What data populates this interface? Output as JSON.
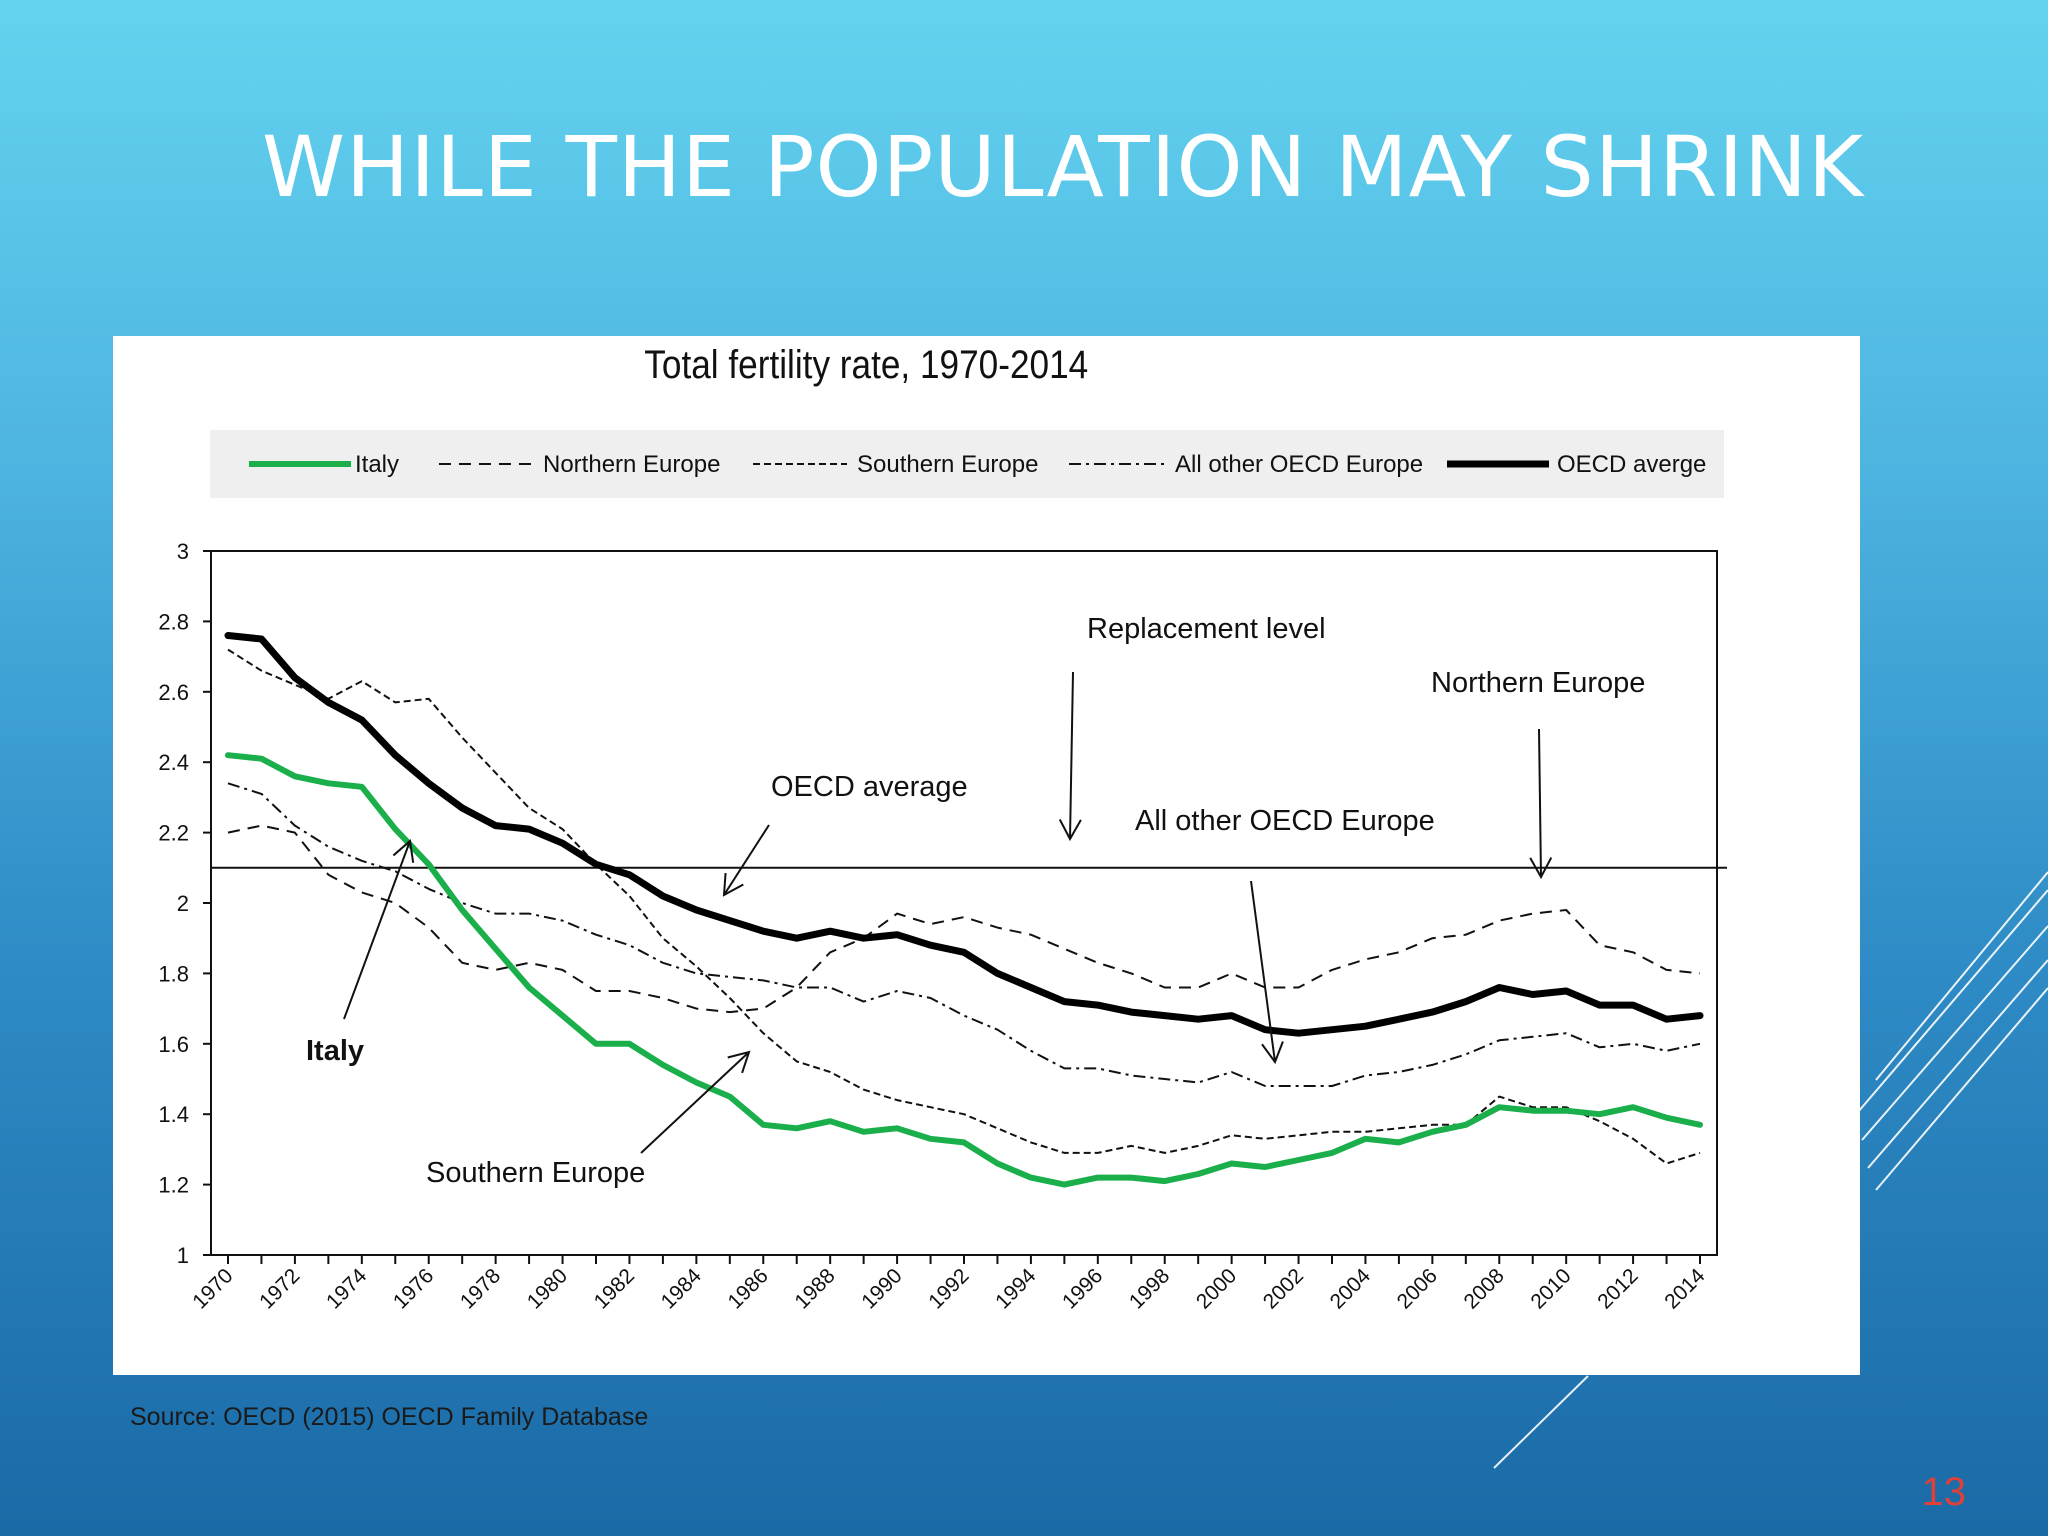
{
  "slide": {
    "title": "WHILE THE POPULATION MAY SHRINK",
    "source": "Source: OECD (2015) OECD Family Database",
    "page_number": "13",
    "colors": {
      "background_top": "#63d3ef",
      "background_bottom": "#1a6aa6",
      "title": "#ffffff",
      "page_number": "#e0403a",
      "decoration": "#ffffff"
    }
  },
  "chart_data": {
    "type": "line",
    "title": "Total fertility rate, 1970-2014",
    "xlabel": "",
    "ylabel": "",
    "ylim": [
      1,
      3
    ],
    "yticks": [
      "1",
      "1.2",
      "1.4",
      "1.6",
      "1.8",
      "2",
      "2.2",
      "2.4",
      "2.6",
      "2.8",
      "3"
    ],
    "xticks_labeled": [
      "1970",
      "1972",
      "1974",
      "1976",
      "1978",
      "1980",
      "1982",
      "1984",
      "1986",
      "1988",
      "1990",
      "1992",
      "1994",
      "1996",
      "1998",
      "2000",
      "2002",
      "2004",
      "2006",
      "2008",
      "2010",
      "2012",
      "2014"
    ],
    "legend_position": "top",
    "grid": false,
    "x": [
      1970,
      1971,
      1972,
      1973,
      1974,
      1975,
      1976,
      1977,
      1978,
      1979,
      1980,
      1981,
      1982,
      1983,
      1984,
      1985,
      1986,
      1987,
      1988,
      1989,
      1990,
      1991,
      1992,
      1993,
      1994,
      1995,
      1996,
      1997,
      1998,
      1999,
      2000,
      2001,
      2002,
      2003,
      2004,
      2005,
      2006,
      2007,
      2008,
      2009,
      2010,
      2011,
      2012,
      2013,
      2014
    ],
    "series": [
      {
        "name": "Italy",
        "color": "#1aaf4b",
        "style": "solid-thick",
        "values": [
          2.42,
          2.41,
          2.36,
          2.34,
          2.33,
          2.21,
          2.11,
          1.98,
          1.87,
          1.76,
          1.68,
          1.6,
          1.6,
          1.54,
          1.49,
          1.45,
          1.37,
          1.36,
          1.38,
          1.35,
          1.36,
          1.33,
          1.32,
          1.26,
          1.22,
          1.2,
          1.22,
          1.22,
          1.21,
          1.23,
          1.26,
          1.25,
          1.27,
          1.29,
          1.33,
          1.32,
          1.35,
          1.37,
          1.42,
          1.41,
          1.41,
          1.4,
          1.42,
          1.39,
          1.37
        ]
      },
      {
        "name": "Northern Europe",
        "color": "#111111",
        "style": "dashed",
        "values": [
          2.2,
          2.22,
          2.2,
          2.08,
          2.03,
          2.0,
          1.93,
          1.83,
          1.81,
          1.83,
          1.81,
          1.75,
          1.75,
          1.73,
          1.7,
          1.69,
          1.7,
          1.76,
          1.86,
          1.9,
          1.97,
          1.94,
          1.96,
          1.93,
          1.91,
          1.87,
          1.83,
          1.8,
          1.76,
          1.76,
          1.8,
          1.76,
          1.76,
          1.81,
          1.84,
          1.86,
          1.9,
          1.91,
          1.95,
          1.97,
          1.98,
          1.88,
          1.86,
          1.81,
          1.8
        ]
      },
      {
        "name": "Southern Europe",
        "color": "#111111",
        "style": "fine-dashed",
        "values": [
          2.72,
          2.66,
          2.62,
          2.58,
          2.63,
          2.57,
          2.58,
          2.47,
          2.37,
          2.27,
          2.21,
          2.11,
          2.02,
          1.9,
          1.82,
          1.73,
          1.63,
          1.55,
          1.52,
          1.47,
          1.44,
          1.42,
          1.4,
          1.36,
          1.32,
          1.29,
          1.29,
          1.31,
          1.29,
          1.31,
          1.34,
          1.33,
          1.34,
          1.35,
          1.35,
          1.36,
          1.37,
          1.37,
          1.45,
          1.42,
          1.42,
          1.38,
          1.33,
          1.26,
          1.29
        ]
      },
      {
        "name": "All other OECD Europe",
        "color": "#111111",
        "style": "dash-dot",
        "values": [
          2.34,
          2.31,
          2.22,
          2.16,
          2.12,
          2.09,
          2.04,
          2.0,
          1.97,
          1.97,
          1.95,
          1.91,
          1.88,
          1.83,
          1.8,
          1.79,
          1.78,
          1.76,
          1.76,
          1.72,
          1.75,
          1.73,
          1.68,
          1.64,
          1.58,
          1.53,
          1.53,
          1.51,
          1.5,
          1.49,
          1.52,
          1.48,
          1.48,
          1.48,
          1.51,
          1.52,
          1.54,
          1.57,
          1.61,
          1.62,
          1.63,
          1.59,
          1.6,
          1.58,
          1.6
        ]
      },
      {
        "name": "OECD averge",
        "color": "#000000",
        "style": "solid-bold",
        "values": [
          2.76,
          2.75,
          2.64,
          2.57,
          2.52,
          2.42,
          2.34,
          2.27,
          2.22,
          2.21,
          2.17,
          2.11,
          2.08,
          2.02,
          1.98,
          1.95,
          1.92,
          1.9,
          1.92,
          1.9,
          1.91,
          1.88,
          1.86,
          1.8,
          1.76,
          1.72,
          1.71,
          1.69,
          1.68,
          1.67,
          1.68,
          1.64,
          1.63,
          1.64,
          1.65,
          1.67,
          1.69,
          1.72,
          1.76,
          1.74,
          1.75,
          1.71,
          1.71,
          1.67,
          1.68
        ]
      }
    ],
    "reference_line": {
      "value": 2.1
    },
    "annotations": [
      {
        "text": "Replacement  level"
      },
      {
        "text": "Northern  Europe"
      },
      {
        "text": "OECD average"
      },
      {
        "text": "All other  OECD Europe"
      },
      {
        "text": "Italy"
      },
      {
        "text": "Southern  Europe"
      }
    ]
  }
}
